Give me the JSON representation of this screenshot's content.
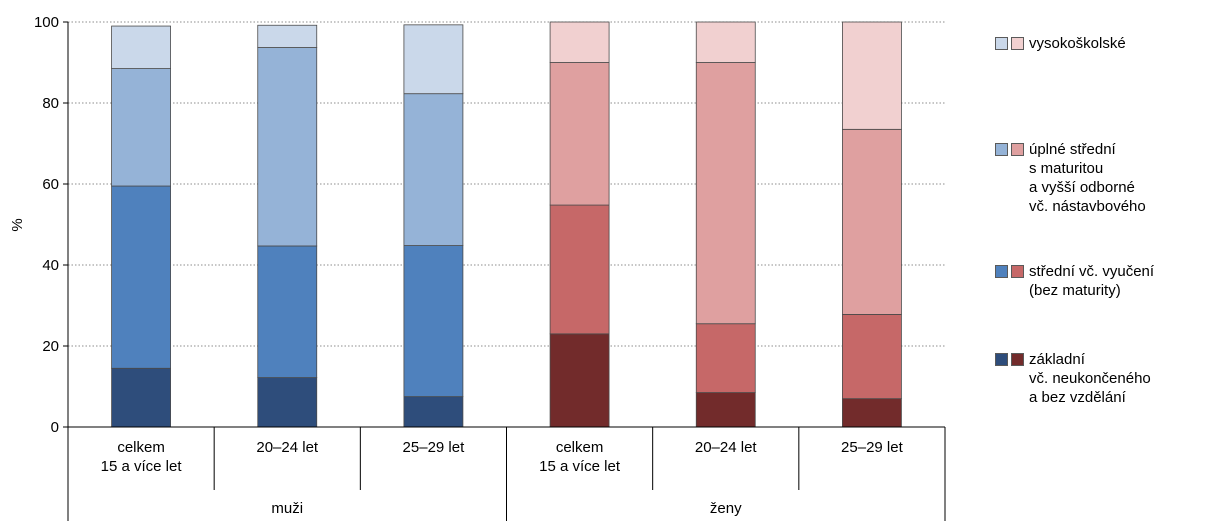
{
  "chart_data": {
    "type": "bar",
    "stacked": true,
    "ylabel": "%",
    "ylim": [
      0,
      100
    ],
    "yticks": [
      0,
      20,
      40,
      60,
      80,
      100
    ],
    "grid": true,
    "legend_position": "right",
    "categories": [
      {
        "label": "celkem\n15 a více let",
        "group": "muži"
      },
      {
        "label": "20–24 let",
        "group": "muži"
      },
      {
        "label": "25–29 let",
        "group": "muži"
      },
      {
        "label": "celkem\n15 a více let",
        "group": "ženy"
      },
      {
        "label": "20–24 let",
        "group": "ženy"
      },
      {
        "label": "25–29 let",
        "group": "ženy"
      }
    ],
    "groups": [
      "muži",
      "ženy"
    ],
    "series": [
      {
        "name": "základní\nvč. neukončeného\na bez vzdělání",
        "colors": {
          "muži": "#2e4d7b",
          "ženy": "#722b2b"
        },
        "values": [
          14.5,
          12.2,
          7.5,
          23.0,
          8.5,
          7.0
        ]
      },
      {
        "name": "střední vč. vyučení\n(bez maturity)",
        "colors": {
          "muži": "#4f81bd",
          "ženy": "#c66868"
        },
        "values": [
          45.0,
          32.5,
          37.3,
          31.8,
          17.0,
          20.8
        ]
      },
      {
        "name": "úplné střední\ns maturitou\na vyšší odborné\nvč. nástavbového",
        "colors": {
          "muži": "#95b3d7",
          "ženy": "#dfa0a0"
        },
        "values": [
          29.0,
          49.0,
          37.5,
          35.2,
          64.5,
          45.7
        ]
      },
      {
        "name": "vysokoškolské",
        "colors": {
          "muži": "#cad8ea",
          "ženy": "#f1d0d0"
        },
        "values": [
          10.5,
          5.5,
          17.0,
          10.0,
          10.0,
          26.5
        ]
      }
    ]
  }
}
